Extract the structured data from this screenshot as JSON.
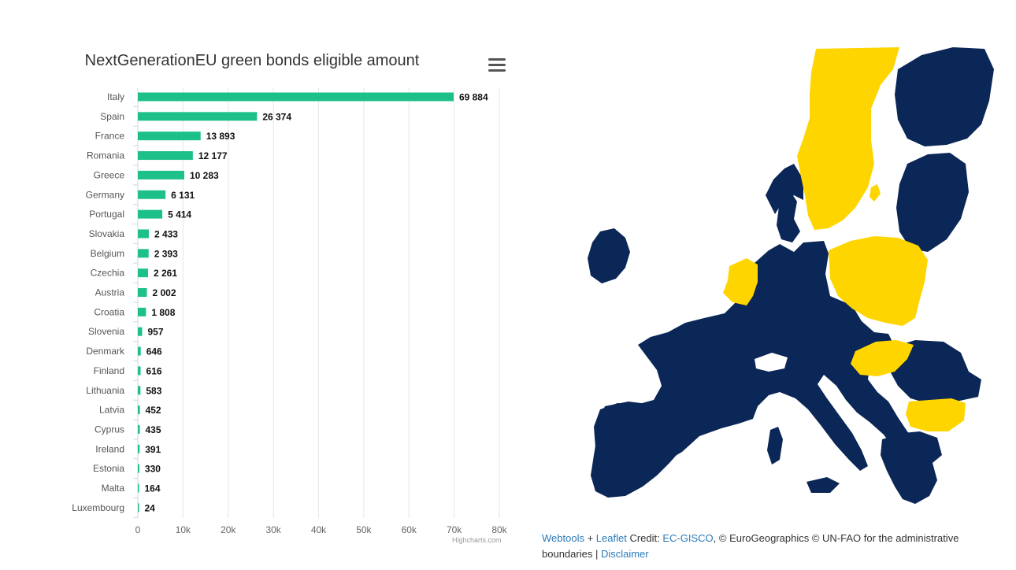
{
  "chart_data": {
    "type": "bar",
    "orientation": "horizontal",
    "title": "NextGenerationEU green bonds eligible amount",
    "categories": [
      "Italy",
      "Spain",
      "France",
      "Romania",
      "Greece",
      "Germany",
      "Portugal",
      "Slovakia",
      "Belgium",
      "Czechia",
      "Austria",
      "Croatia",
      "Slovenia",
      "Denmark",
      "Finland",
      "Lithuania",
      "Latvia",
      "Cyprus",
      "Ireland",
      "Estonia",
      "Malta",
      "Luxembourg"
    ],
    "values": [
      69884,
      26374,
      13893,
      12177,
      10283,
      6131,
      5414,
      2433,
      2393,
      2261,
      2002,
      1808,
      957,
      646,
      616,
      583,
      452,
      435,
      391,
      330,
      164,
      24
    ],
    "value_labels": [
      "69 884",
      "26 374",
      "13 893",
      "12 177",
      "10 283",
      "6 131",
      "5 414",
      "2 433",
      "2 393",
      "2 261",
      "2 002",
      "1 808",
      "957",
      "646",
      "616",
      "583",
      "452",
      "435",
      "391",
      "330",
      "164",
      "24"
    ],
    "x_ticks": [
      "0",
      "10k",
      "20k",
      "30k",
      "40k",
      "50k",
      "60k",
      "70k",
      "80k"
    ],
    "xlim": [
      0,
      80000
    ],
    "grid": true,
    "bar_color": "#1ec08a",
    "credits": "Highcharts.com"
  },
  "colors": {
    "map_dark": "#0b2757",
    "map_highlight": "#ffd500",
    "link": "#2a7ab8"
  },
  "map": {
    "attribution": {
      "webtools": "Webtools",
      "plus": " + ",
      "leaflet": "Leaflet",
      "credit_prefix": " Credit: ",
      "ec_gisco": "EC-GISCO",
      "credit_suffix": ", © EuroGeographics © UN-FAO for the administrative boundaries | ",
      "disclaimer": "Disclaimer"
    }
  }
}
